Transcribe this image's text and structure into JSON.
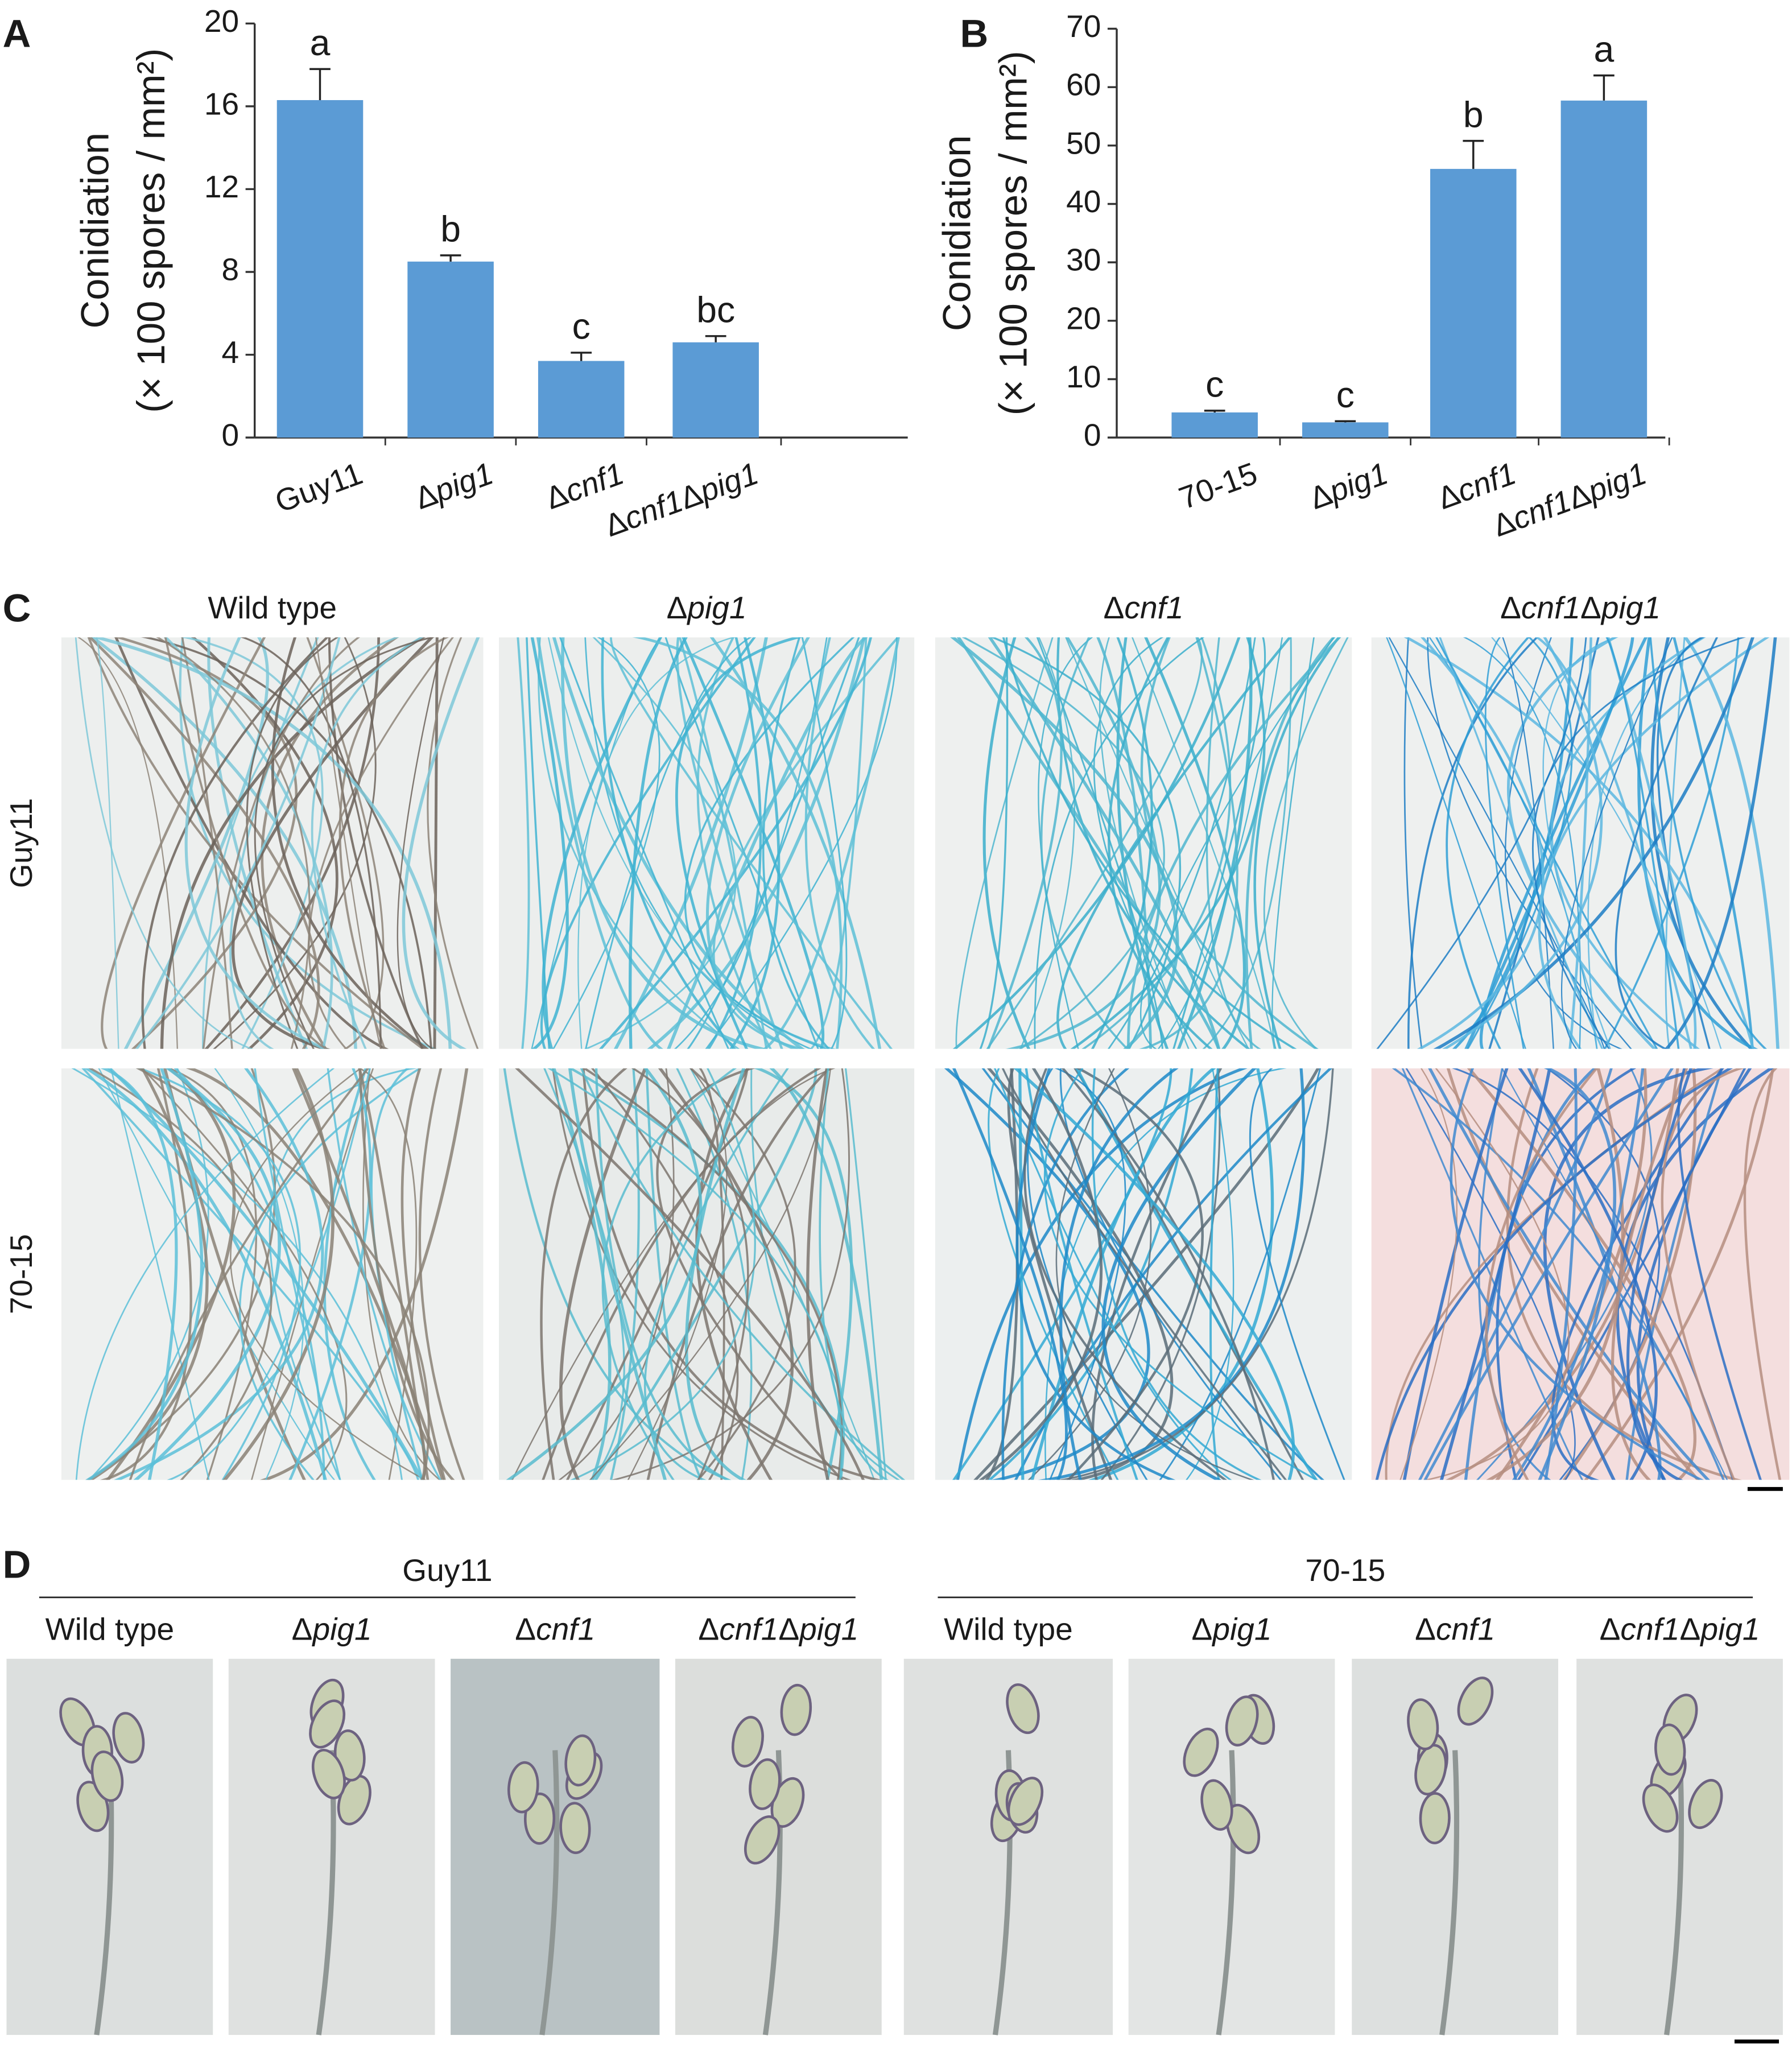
{
  "chart_data": [
    {
      "type": "bar",
      "label": "A",
      "y_label": [
        "Conidiation",
        "(× 100 spores / mm²)"
      ],
      "categories": [
        "Guy11",
        "Δpig1",
        "Δcnf1",
        "Δcnf1Δpig1"
      ],
      "values": [
        16.3,
        8.5,
        3.7,
        4.6
      ],
      "errors": [
        1.5,
        0.3,
        0.4,
        0.3
      ],
      "annotations": [
        "a",
        "b",
        "c",
        "bc"
      ],
      "color": "#5b9bd5",
      "ylim": [
        0,
        20
      ],
      "yticks": [
        0,
        4,
        8,
        12,
        16,
        20
      ]
    },
    {
      "type": "bar",
      "label": "B",
      "y_label": [
        "Conidiation",
        "(× 100 spores / mm²)"
      ],
      "categories": [
        "70-15",
        "Δpig1",
        "Δcnf1",
        "Δcnf1Δpig1"
      ],
      "values": [
        4.3,
        2.6,
        46,
        57.7
      ],
      "errors": [
        0.3,
        0.2,
        4.8,
        4.3
      ],
      "annotations": [
        "c",
        "c",
        "b",
        "a"
      ],
      "color": "#5b9bd5",
      "ylim": [
        0,
        70
      ],
      "yticks": [
        0,
        10,
        20,
        30,
        40,
        50,
        60,
        70
      ]
    }
  ],
  "panel_c": {
    "label": "C",
    "columns": [
      "Wild type",
      "Δpig1",
      "Δcnf1",
      "Δcnf1Δpig1"
    ],
    "rows": [
      "Guy11",
      "70-15"
    ]
  },
  "panel_d": {
    "label": "D",
    "groups": [
      {
        "name": "Guy11",
        "columns": [
          "Wild type",
          "Δpig1",
          "Δcnf1",
          "Δcnf1Δpig1"
        ]
      },
      {
        "name": "70-15",
        "columns": [
          "Wild type",
          "Δpig1",
          "Δcnf1",
          "Δcnf1Δpig1"
        ]
      }
    ]
  }
}
